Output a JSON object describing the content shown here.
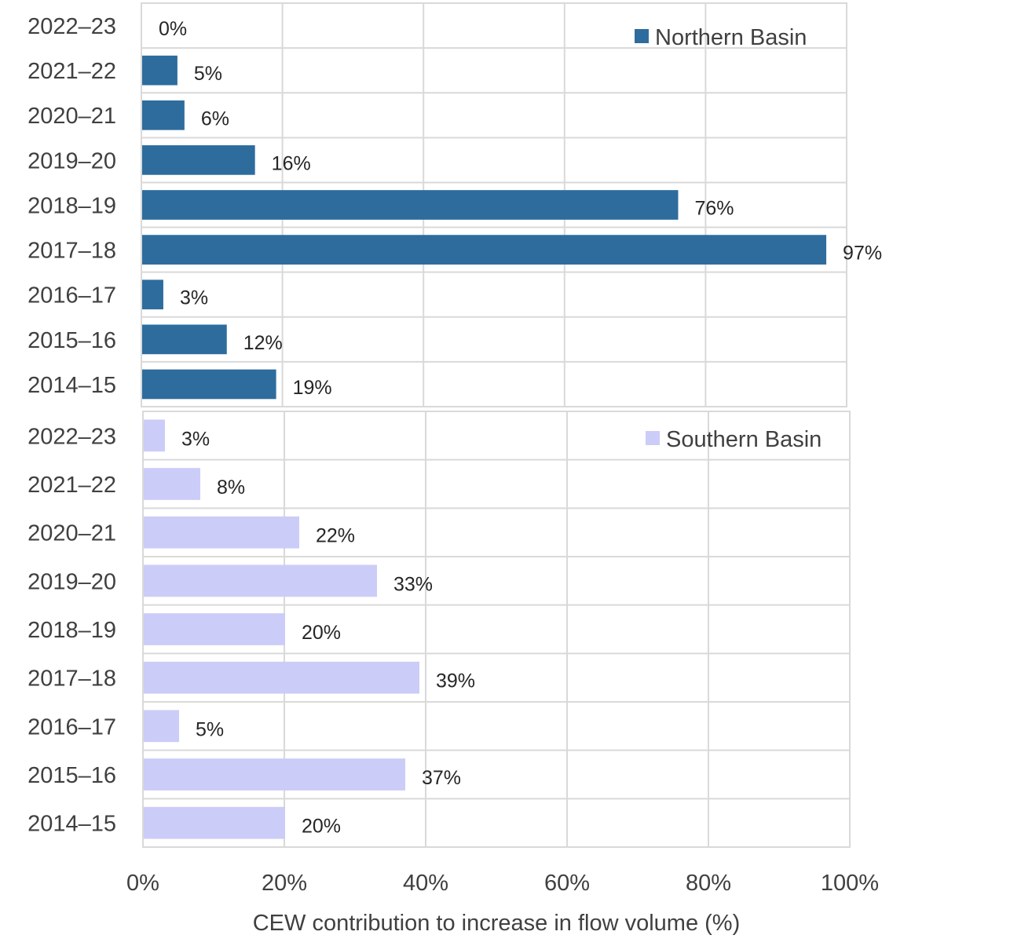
{
  "chart_data": [
    {
      "type": "bar",
      "orientation": "horizontal",
      "categories": [
        "2022–23",
        "2021–22",
        "2020–21",
        "2019–20",
        "2018–19",
        "2017–18",
        "2016–17",
        "2015–16",
        "2014–15"
      ],
      "series": [
        {
          "name": "Northern Basin",
          "values": [
            0,
            5,
            6,
            16,
            76,
            97,
            3,
            12,
            19
          ],
          "labels": [
            "0%",
            "5%",
            "6%",
            "16%",
            "76%",
            "97%",
            "3%",
            "12%",
            "19%"
          ],
          "color": "#2e6c9e"
        }
      ],
      "legend": "top-right",
      "grid": true,
      "xlim": [
        0,
        100
      ]
    },
    {
      "type": "bar",
      "orientation": "horizontal",
      "categories": [
        "2022–23",
        "2021–22",
        "2020–21",
        "2019–20",
        "2018–19",
        "2017–18",
        "2016–17",
        "2015–16",
        "2014–15"
      ],
      "series": [
        {
          "name": "Southern Basin",
          "values": [
            3,
            8,
            22,
            33,
            20,
            39,
            5,
            37,
            20
          ],
          "labels": [
            "3%",
            "8%",
            "22%",
            "33%",
            "20%",
            "39%",
            "5%",
            "37%",
            "20%"
          ],
          "color": "#ccccf8"
        }
      ],
      "legend": "top-right",
      "grid": true,
      "xlim": [
        0,
        100
      ],
      "xticks": [
        "0%",
        "20%",
        "40%",
        "60%",
        "80%",
        "100%"
      ],
      "xlabel": "CEW contribution to increase in flow volume (%)"
    }
  ],
  "colors": {
    "grid": "#d9d9d9",
    "text": "#404040"
  }
}
